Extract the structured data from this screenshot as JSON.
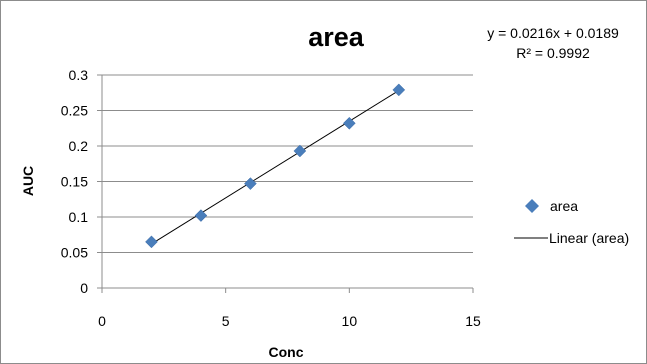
{
  "chart_data": {
    "type": "scatter",
    "title": "area",
    "xlabel": "Conc",
    "ylabel": "AUC",
    "xlim": [
      0,
      15
    ],
    "ylim": [
      0,
      0.3
    ],
    "x_ticks": [
      "0",
      "5",
      "10",
      "15"
    ],
    "y_ticks": [
      "0",
      "0.05",
      "0.1",
      "0.15",
      "0.2",
      "0.25",
      "0.3"
    ],
    "grid": "horizontal",
    "legend_position": "right",
    "series": [
      {
        "name": "area",
        "marker": "diamond",
        "color": "#4a7ebb",
        "x": [
          2,
          4,
          6,
          8,
          10,
          12
        ],
        "y": [
          0.065,
          0.102,
          0.147,
          0.193,
          0.232,
          0.279
        ]
      }
    ],
    "trendline": {
      "name": "Linear (area)",
      "slope": 0.0216,
      "intercept": 0.0189,
      "x_range": [
        2,
        12
      ],
      "color": "#000000"
    },
    "annotations": {
      "equation": "y = 0.0216x + 0.0189",
      "r_squared": "R² = 0.9992"
    }
  }
}
